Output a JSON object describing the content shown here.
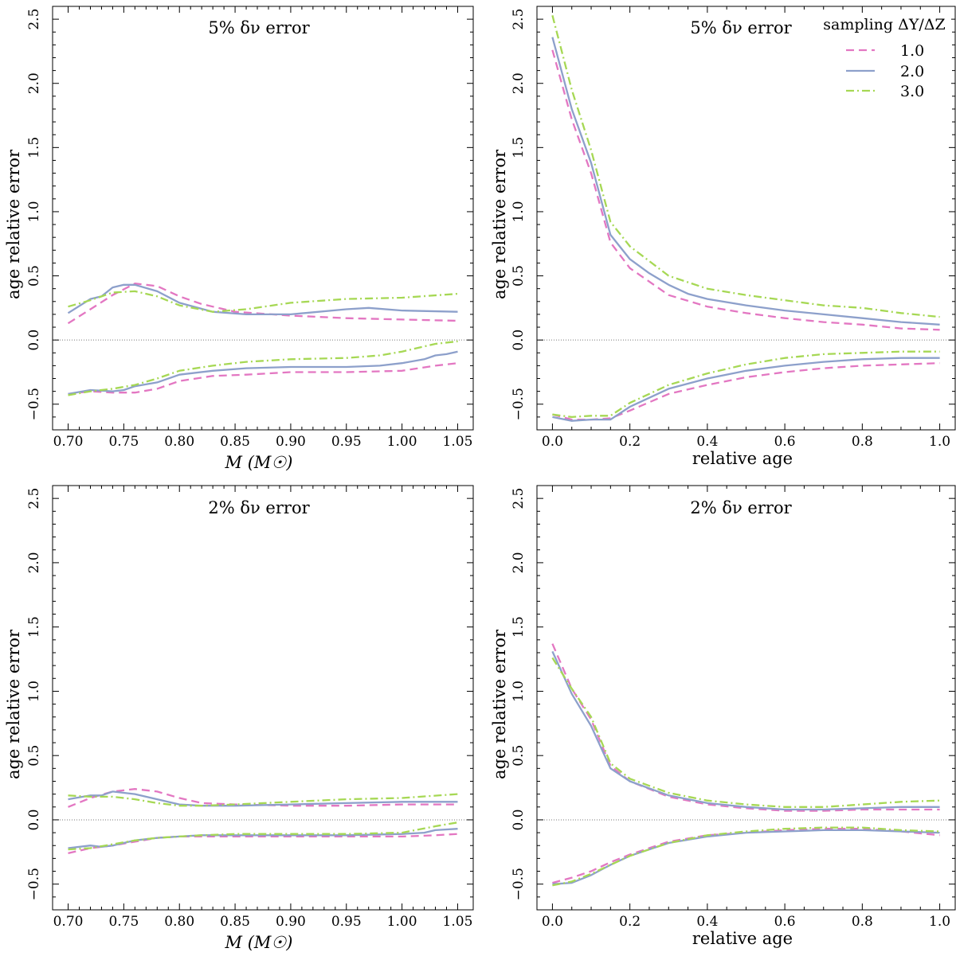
{
  "colors": {
    "series1": "#e377c2",
    "series2": "#8da0cb",
    "series3": "#a6d854"
  },
  "legend": {
    "title": "sampling ΔY/ΔZ",
    "entries": [
      {
        "label": "1.0",
        "style": "dashed",
        "color": "#e377c2"
      },
      {
        "label": "2.0",
        "style": "solid",
        "color": "#8da0cb"
      },
      {
        "label": "3.0",
        "style": "dashdot",
        "color": "#a6d854"
      }
    ]
  },
  "chart_data": [
    {
      "type": "line",
      "title": "5% δν error",
      "xlabel": "M (M☉)",
      "ylabel": "age relative error",
      "xlim": [
        0.7,
        1.05
      ],
      "ylim": [
        -0.7,
        2.6
      ],
      "xticks": [
        "0.70",
        "0.75",
        "0.80",
        "0.85",
        "0.90",
        "0.95",
        "1.00",
        "1.05"
      ],
      "yticks": [
        "−0.5",
        "0.0",
        "0.5",
        "1.0",
        "1.5",
        "2.0",
        "2.5"
      ],
      "series": [
        {
          "name": "1.0",
          "part": "upper",
          "x": [
            0.7,
            0.72,
            0.74,
            0.76,
            0.78,
            0.8,
            0.82,
            0.85,
            0.9,
            0.95,
            1.0,
            1.05
          ],
          "values": [
            0.13,
            0.24,
            0.35,
            0.44,
            0.42,
            0.34,
            0.28,
            0.22,
            0.19,
            0.17,
            0.16,
            0.15
          ]
        },
        {
          "name": "2.0",
          "part": "upper",
          "x": [
            0.7,
            0.72,
            0.73,
            0.74,
            0.75,
            0.76,
            0.78,
            0.8,
            0.83,
            0.86,
            0.9,
            0.95,
            0.97,
            1.0,
            1.05
          ],
          "values": [
            0.21,
            0.32,
            0.34,
            0.41,
            0.43,
            0.43,
            0.38,
            0.29,
            0.22,
            0.2,
            0.2,
            0.24,
            0.25,
            0.23,
            0.22
          ]
        },
        {
          "name": "3.0",
          "part": "upper",
          "x": [
            0.7,
            0.72,
            0.74,
            0.76,
            0.78,
            0.8,
            0.83,
            0.86,
            0.9,
            0.95,
            1.0,
            1.05
          ],
          "values": [
            0.26,
            0.31,
            0.37,
            0.38,
            0.34,
            0.27,
            0.22,
            0.24,
            0.29,
            0.32,
            0.33,
            0.36
          ]
        },
        {
          "name": "1.0",
          "part": "lower",
          "x": [
            0.7,
            0.72,
            0.74,
            0.76,
            0.78,
            0.8,
            0.83,
            0.86,
            0.9,
            0.95,
            1.0,
            1.03,
            1.05
          ],
          "values": [
            -0.42,
            -0.4,
            -0.41,
            -0.41,
            -0.38,
            -0.32,
            -0.28,
            -0.27,
            -0.25,
            -0.25,
            -0.24,
            -0.2,
            -0.18
          ]
        },
        {
          "name": "2.0",
          "part": "lower",
          "x": [
            0.7,
            0.72,
            0.74,
            0.75,
            0.76,
            0.78,
            0.8,
            0.83,
            0.86,
            0.9,
            0.95,
            0.98,
            1.0,
            1.02,
            1.03,
            1.04,
            1.05
          ],
          "values": [
            -0.42,
            -0.39,
            -0.4,
            -0.39,
            -0.36,
            -0.33,
            -0.27,
            -0.24,
            -0.22,
            -0.21,
            -0.21,
            -0.2,
            -0.18,
            -0.15,
            -0.12,
            -0.11,
            -0.09
          ]
        },
        {
          "name": "3.0",
          "part": "lower",
          "x": [
            0.7,
            0.72,
            0.74,
            0.76,
            0.78,
            0.8,
            0.83,
            0.86,
            0.9,
            0.95,
            0.98,
            1.0,
            1.02,
            1.03,
            1.05
          ],
          "values": [
            -0.43,
            -0.4,
            -0.38,
            -0.35,
            -0.3,
            -0.24,
            -0.2,
            -0.17,
            -0.15,
            -0.14,
            -0.12,
            -0.09,
            -0.05,
            -0.03,
            -0.01
          ]
        }
      ]
    },
    {
      "type": "line",
      "title": "5% δν error",
      "xlabel": "relative age",
      "ylabel": "age relative error",
      "xlim": [
        0.0,
        1.0
      ],
      "ylim": [
        -0.7,
        2.6
      ],
      "xticks": [
        "0.0",
        "0.2",
        "0.4",
        "0.6",
        "0.8",
        "1.0"
      ],
      "yticks": [
        "−0.5",
        "0.0",
        "0.5",
        "1.0",
        "1.5",
        "2.0",
        "2.5"
      ],
      "series": [
        {
          "name": "1.0",
          "part": "upper",
          "x": [
            0.0,
            0.05,
            0.1,
            0.15,
            0.2,
            0.3,
            0.4,
            0.5,
            0.6,
            0.7,
            0.8,
            0.9,
            1.0
          ],
          "values": [
            2.26,
            1.72,
            1.3,
            0.76,
            0.56,
            0.35,
            0.26,
            0.21,
            0.17,
            0.14,
            0.12,
            0.09,
            0.08
          ]
        },
        {
          "name": "2.0",
          "part": "upper",
          "x": [
            0.0,
            0.05,
            0.1,
            0.15,
            0.2,
            0.25,
            0.3,
            0.35,
            0.4,
            0.5,
            0.6,
            0.7,
            0.8,
            0.9,
            1.0
          ],
          "values": [
            2.36,
            1.8,
            1.38,
            0.82,
            0.63,
            0.52,
            0.43,
            0.36,
            0.32,
            0.27,
            0.23,
            0.2,
            0.17,
            0.14,
            0.12
          ]
        },
        {
          "name": "3.0",
          "part": "upper",
          "x": [
            0.0,
            0.05,
            0.1,
            0.15,
            0.2,
            0.3,
            0.4,
            0.5,
            0.6,
            0.7,
            0.8,
            0.9,
            1.0
          ],
          "values": [
            2.53,
            1.95,
            1.48,
            0.92,
            0.73,
            0.5,
            0.4,
            0.35,
            0.31,
            0.27,
            0.25,
            0.21,
            0.18
          ]
        },
        {
          "name": "1.0",
          "part": "lower",
          "x": [
            0.0,
            0.05,
            0.1,
            0.15,
            0.2,
            0.3,
            0.4,
            0.5,
            0.6,
            0.7,
            0.8,
            0.9,
            1.0
          ],
          "values": [
            -0.58,
            -0.62,
            -0.62,
            -0.61,
            -0.55,
            -0.42,
            -0.35,
            -0.29,
            -0.25,
            -0.22,
            -0.2,
            -0.19,
            -0.18
          ]
        },
        {
          "name": "2.0",
          "part": "lower",
          "x": [
            0.0,
            0.05,
            0.1,
            0.15,
            0.2,
            0.3,
            0.4,
            0.5,
            0.6,
            0.7,
            0.8,
            0.9,
            1.0
          ],
          "values": [
            -0.6,
            -0.63,
            -0.62,
            -0.62,
            -0.52,
            -0.38,
            -0.3,
            -0.24,
            -0.2,
            -0.17,
            -0.15,
            -0.14,
            -0.14
          ]
        },
        {
          "name": "3.0",
          "part": "lower",
          "x": [
            0.0,
            0.05,
            0.1,
            0.15,
            0.2,
            0.3,
            0.4,
            0.5,
            0.6,
            0.7,
            0.8,
            0.9,
            1.0
          ],
          "values": [
            -0.58,
            -0.6,
            -0.59,
            -0.59,
            -0.49,
            -0.35,
            -0.26,
            -0.19,
            -0.14,
            -0.11,
            -0.1,
            -0.09,
            -0.09
          ]
        }
      ]
    },
    {
      "type": "line",
      "title": "2% δν error",
      "xlabel": "M (M☉)",
      "ylabel": "age relative error",
      "xlim": [
        0.7,
        1.05
      ],
      "ylim": [
        -0.7,
        2.6
      ],
      "xticks": [
        "0.70",
        "0.75",
        "0.80",
        "0.85",
        "0.90",
        "0.95",
        "1.00",
        "1.05"
      ],
      "yticks": [
        "−0.5",
        "0.0",
        "0.5",
        "1.0",
        "1.5",
        "2.0",
        "2.5"
      ],
      "series": [
        {
          "name": "1.0",
          "part": "upper",
          "x": [
            0.7,
            0.72,
            0.74,
            0.76,
            0.78,
            0.8,
            0.82,
            0.85,
            0.9,
            0.95,
            1.0,
            1.05
          ],
          "values": [
            0.1,
            0.17,
            0.22,
            0.24,
            0.22,
            0.17,
            0.13,
            0.12,
            0.11,
            0.11,
            0.12,
            0.12
          ]
        },
        {
          "name": "2.0",
          "part": "upper",
          "x": [
            0.7,
            0.72,
            0.73,
            0.74,
            0.76,
            0.78,
            0.8,
            0.82,
            0.85,
            0.9,
            0.95,
            1.0,
            1.05
          ],
          "values": [
            0.16,
            0.19,
            0.19,
            0.22,
            0.2,
            0.16,
            0.12,
            0.11,
            0.11,
            0.12,
            0.13,
            0.14,
            0.14
          ]
        },
        {
          "name": "3.0",
          "part": "upper",
          "x": [
            0.7,
            0.72,
            0.74,
            0.76,
            0.78,
            0.8,
            0.82,
            0.85,
            0.9,
            0.95,
            1.0,
            1.05
          ],
          "values": [
            0.19,
            0.18,
            0.18,
            0.16,
            0.13,
            0.11,
            0.11,
            0.12,
            0.14,
            0.16,
            0.17,
            0.2
          ]
        },
        {
          "name": "1.0",
          "part": "lower",
          "x": [
            0.7,
            0.72,
            0.74,
            0.76,
            0.78,
            0.8,
            0.82,
            0.85,
            0.9,
            0.95,
            1.0,
            1.03,
            1.05
          ],
          "values": [
            -0.26,
            -0.22,
            -0.2,
            -0.17,
            -0.14,
            -0.13,
            -0.13,
            -0.13,
            -0.13,
            -0.13,
            -0.13,
            -0.12,
            -0.11
          ]
        },
        {
          "name": "2.0",
          "part": "lower",
          "x": [
            0.7,
            0.72,
            0.73,
            0.74,
            0.76,
            0.78,
            0.8,
            0.82,
            0.85,
            0.9,
            0.95,
            1.0,
            1.02,
            1.03,
            1.05
          ],
          "values": [
            -0.22,
            -0.2,
            -0.21,
            -0.2,
            -0.16,
            -0.14,
            -0.13,
            -0.12,
            -0.12,
            -0.12,
            -0.12,
            -0.11,
            -0.1,
            -0.08,
            -0.07
          ]
        },
        {
          "name": "3.0",
          "part": "lower",
          "x": [
            0.7,
            0.72,
            0.74,
            0.76,
            0.78,
            0.8,
            0.82,
            0.85,
            0.9,
            0.95,
            1.0,
            1.03,
            1.05
          ],
          "values": [
            -0.23,
            -0.22,
            -0.19,
            -0.16,
            -0.14,
            -0.13,
            -0.12,
            -0.11,
            -0.11,
            -0.11,
            -0.1,
            -0.05,
            -0.02
          ]
        }
      ]
    },
    {
      "type": "line",
      "title": "2% δν error",
      "xlabel": "relative age",
      "ylabel": "age relative error",
      "xlim": [
        0.0,
        1.0
      ],
      "ylim": [
        -0.7,
        2.6
      ],
      "xticks": [
        "0.0",
        "0.2",
        "0.4",
        "0.6",
        "0.8",
        "1.0"
      ],
      "yticks": [
        "−0.5",
        "0.0",
        "0.5",
        "1.0",
        "1.5",
        "2.0",
        "2.5"
      ],
      "series": [
        {
          "name": "1.0",
          "part": "upper",
          "x": [
            0.0,
            0.05,
            0.1,
            0.15,
            0.2,
            0.3,
            0.4,
            0.5,
            0.6,
            0.7,
            0.8,
            0.9,
            1.0
          ],
          "values": [
            1.37,
            1.02,
            0.78,
            0.42,
            0.3,
            0.18,
            0.12,
            0.09,
            0.07,
            0.07,
            0.08,
            0.08,
            0.08
          ]
        },
        {
          "name": "2.0",
          "part": "upper",
          "x": [
            0.0,
            0.05,
            0.1,
            0.15,
            0.2,
            0.3,
            0.4,
            0.5,
            0.6,
            0.7,
            0.8,
            0.9,
            1.0
          ],
          "values": [
            1.31,
            0.98,
            0.73,
            0.4,
            0.3,
            0.19,
            0.13,
            0.1,
            0.08,
            0.08,
            0.09,
            0.1,
            0.1
          ]
        },
        {
          "name": "3.0",
          "part": "upper",
          "x": [
            0.0,
            0.05,
            0.1,
            0.15,
            0.2,
            0.3,
            0.4,
            0.5,
            0.6,
            0.7,
            0.8,
            0.9,
            1.0
          ],
          "values": [
            1.26,
            1.02,
            0.8,
            0.44,
            0.32,
            0.21,
            0.15,
            0.12,
            0.1,
            0.1,
            0.12,
            0.14,
            0.15
          ]
        },
        {
          "name": "1.0",
          "part": "lower",
          "x": [
            0.0,
            0.05,
            0.1,
            0.15,
            0.2,
            0.3,
            0.4,
            0.5,
            0.6,
            0.7,
            0.8,
            0.9,
            1.0
          ],
          "values": [
            -0.49,
            -0.45,
            -0.4,
            -0.33,
            -0.27,
            -0.17,
            -0.12,
            -0.1,
            -0.08,
            -0.07,
            -0.07,
            -0.09,
            -0.12
          ]
        },
        {
          "name": "2.0",
          "part": "lower",
          "x": [
            0.0,
            0.05,
            0.1,
            0.15,
            0.2,
            0.3,
            0.4,
            0.5,
            0.6,
            0.7,
            0.8,
            0.9,
            1.0
          ],
          "values": [
            -0.5,
            -0.49,
            -0.43,
            -0.35,
            -0.28,
            -0.18,
            -0.13,
            -0.1,
            -0.09,
            -0.08,
            -0.08,
            -0.09,
            -0.1
          ]
        },
        {
          "name": "3.0",
          "part": "lower",
          "x": [
            0.0,
            0.05,
            0.1,
            0.15,
            0.2,
            0.3,
            0.4,
            0.5,
            0.6,
            0.7,
            0.8,
            0.9,
            1.0
          ],
          "values": [
            -0.51,
            -0.48,
            -0.42,
            -0.35,
            -0.28,
            -0.18,
            -0.12,
            -0.09,
            -0.07,
            -0.06,
            -0.06,
            -0.08,
            -0.09
          ]
        }
      ]
    }
  ]
}
